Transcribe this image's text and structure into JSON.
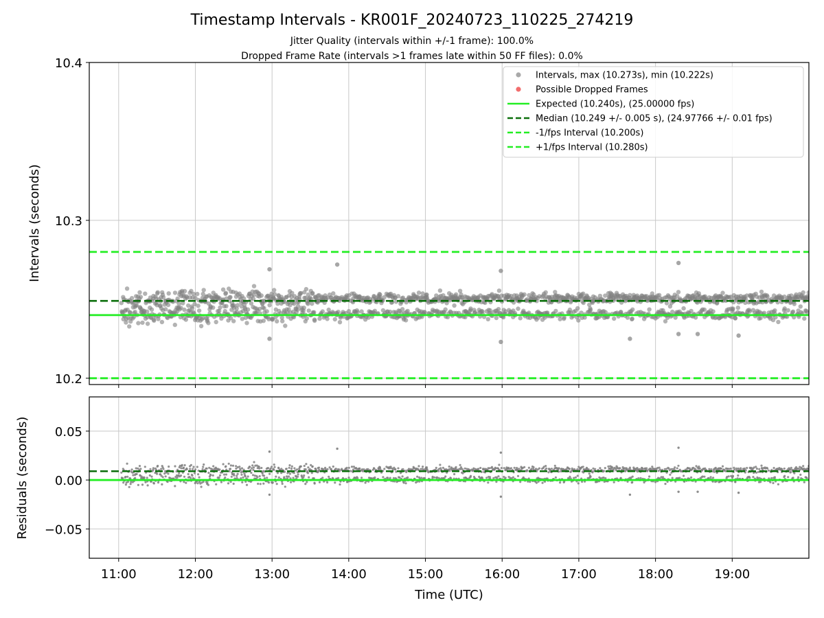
{
  "figure": {
    "title": "Timestamp Intervals - KR001F_20240723_110225_274219",
    "subtitle_1": "Jitter Quality (intervals within +/-1 frame): 100.0%",
    "subtitle_2": "Dropped Frame Rate (intervals >1 frames late within 50 FF files): 0.0%"
  },
  "colors": {
    "intervals_points": "#808080",
    "dropped_points": "#f26d6d",
    "expected_line": "#22ee22",
    "median_line": "#0a6e0a",
    "fps_bounds": "#22ee22",
    "grid": "#c8c8c8"
  },
  "chart_data": [
    {
      "type": "scatter",
      "panel": "top",
      "xlabel": "",
      "ylabel": "Intervals (seconds)",
      "xlim": [
        "10:37",
        "20:00"
      ],
      "ylim": [
        10.196,
        10.4
      ],
      "y_ticks": [
        "10.2",
        "10.3",
        "10.4"
      ],
      "grid": true,
      "legend_position": "top-right",
      "legend": [
        {
          "label": "Intervals, max (10.273s), min (10.222s)",
          "kind": "marker",
          "color": "#a0a0a0"
        },
        {
          "label": "Possible Dropped Frames",
          "kind": "marker",
          "color": "#f26d6d"
        },
        {
          "label": "Expected (10.240s), (25.00000 fps)",
          "kind": "solid",
          "color": "#22ee22"
        },
        {
          "label": "Median (10.249 +/- 0.005 s), (24.97766 +/- 0.01 fps)",
          "kind": "dashed",
          "color": "#0a6e0a"
        },
        {
          "label": "-1/fps Interval (10.200s)",
          "kind": "dashed",
          "color": "#22ee22"
        },
        {
          "label": "+1/fps Interval (10.280s)",
          "kind": "dashed",
          "color": "#22ee22"
        }
      ],
      "reference_lines": {
        "expected": 10.24,
        "median": 10.249,
        "minus_one_fps": 10.2,
        "plus_one_fps": 10.28
      },
      "series": [
        {
          "name": "Intervals",
          "x_start": "11:02",
          "x_end": "20:00",
          "sample_interval_seconds": 10.24,
          "min": 10.222,
          "max": 10.273,
          "note_values": "Bimodal cluster around 10.240 and 10.251; wider spread between 11:00 and 13:30",
          "outliers": [
            {
              "x": "12:58",
              "y": 10.269
            },
            {
              "x": "13:51",
              "y": 10.272
            },
            {
              "x": "15:59",
              "y": 10.268
            },
            {
              "x": "15:59",
              "y": 10.223
            },
            {
              "x": "18:18",
              "y": 10.273
            },
            {
              "x": "18:18",
              "y": 10.228
            },
            {
              "x": "18:33",
              "y": 10.228
            },
            {
              "x": "19:05",
              "y": 10.227
            },
            {
              "x": "17:40",
              "y": 10.225
            },
            {
              "x": "12:58",
              "y": 10.225
            }
          ]
        },
        {
          "name": "Possible Dropped Frames",
          "points": []
        }
      ]
    },
    {
      "type": "scatter",
      "panel": "bottom",
      "xlabel": "Time (UTC)",
      "ylabel": "Residuals (seconds)",
      "xlim": [
        "10:37",
        "20:00"
      ],
      "ylim": [
        -0.08,
        0.085
      ],
      "x_ticks": [
        "11:00",
        "12:00",
        "13:00",
        "14:00",
        "15:00",
        "16:00",
        "17:00",
        "18:00",
        "19:00"
      ],
      "y_ticks": [
        "0.05",
        "0.00",
        "−0.05"
      ],
      "grid": true,
      "reference_lines": {
        "zero": 0.0,
        "median": 0.009
      },
      "series": [
        {
          "name": "Residuals",
          "x_start": "11:02",
          "x_end": "20:00",
          "min": -0.018,
          "max": 0.033
        }
      ]
    }
  ]
}
